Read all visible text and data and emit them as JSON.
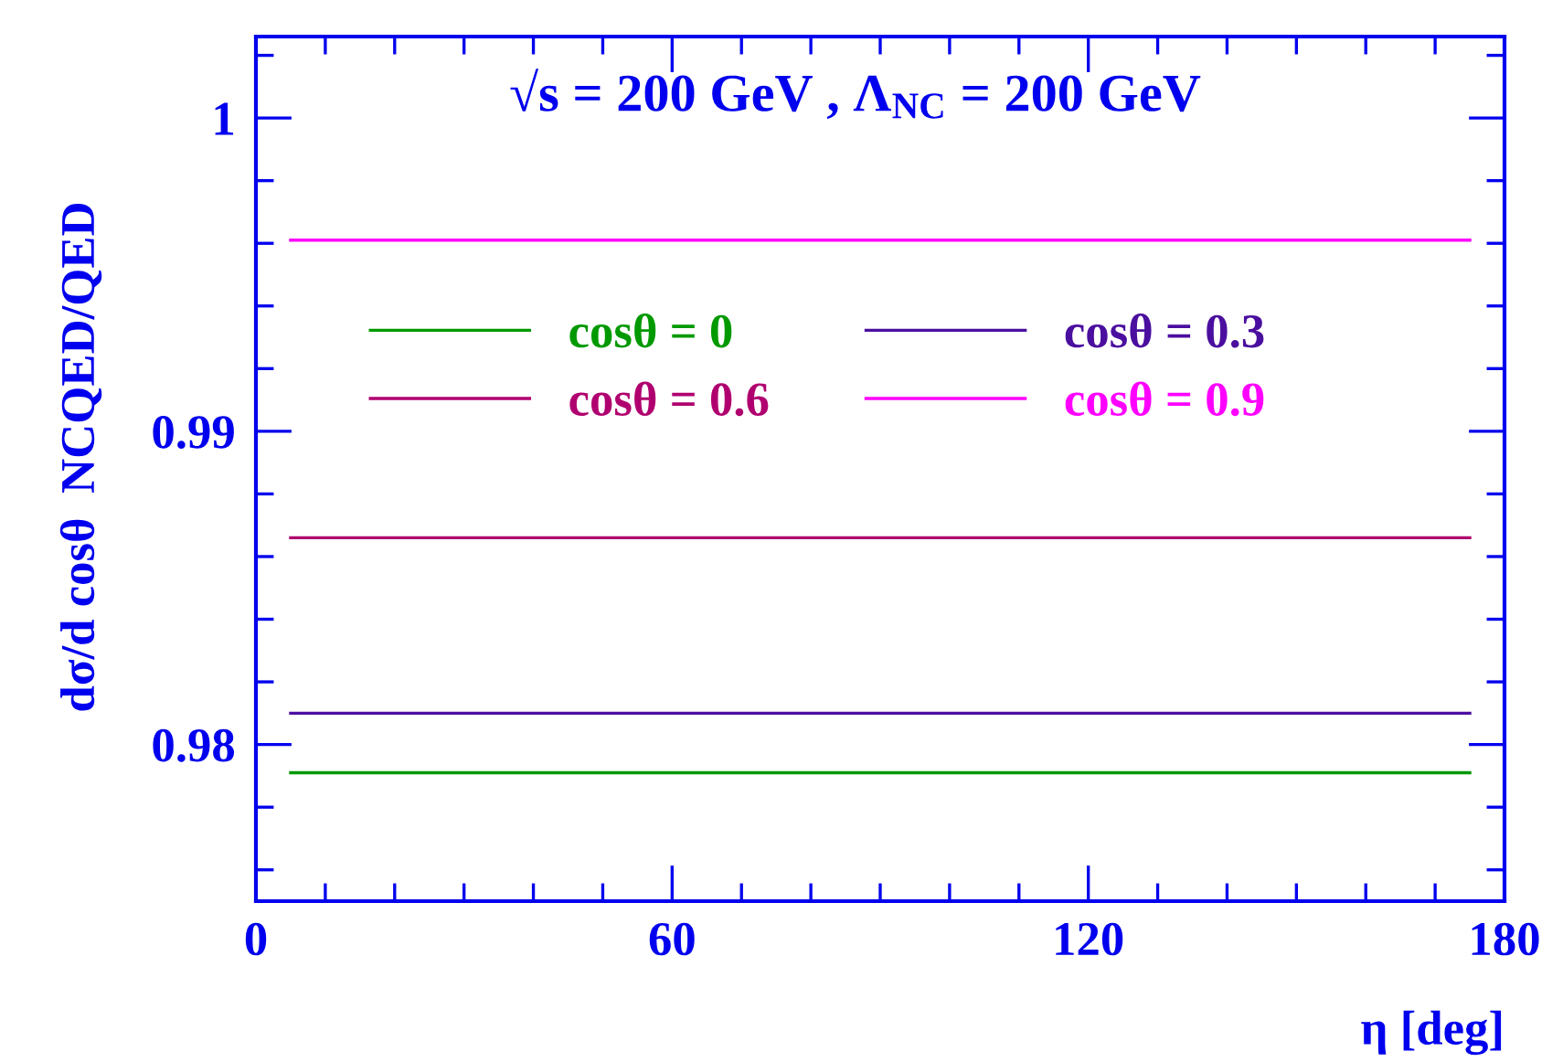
{
  "chart_data": {
    "type": "line",
    "title": "√s = 200 GeV , Λ$_{NC}$ = 200 GeV",
    "xlabel": "η [deg]",
    "ylabel": "dσ/d cosθ  NCQED/QED",
    "x": [
      5,
      175
    ],
    "series": [
      {
        "name": "cosθ = 0",
        "color": "#009900",
        "values": [
          0.9791,
          0.9791
        ]
      },
      {
        "name": "cosθ = 0.3",
        "color": "#4b0f9f",
        "values": [
          0.981,
          0.981
        ]
      },
      {
        "name": "cosθ = 0.6",
        "color": "#b0006f",
        "values": [
          0.9866,
          0.9866
        ]
      },
      {
        "name": "cosθ = 0.9",
        "color": "#ff00ff",
        "values": [
          0.9961,
          0.9961
        ]
      }
    ],
    "xlim": [
      0,
      180
    ],
    "xticks": [
      0,
      60,
      120,
      180
    ],
    "ylim": [
      0.975,
      1.0026
    ],
    "yticks": [
      0.98,
      0.99,
      {
        "value": 1,
        "label": "1"
      }
    ],
    "grid": false,
    "legend": "upper center",
    "marker": "none",
    "line_style": "solid"
  }
}
